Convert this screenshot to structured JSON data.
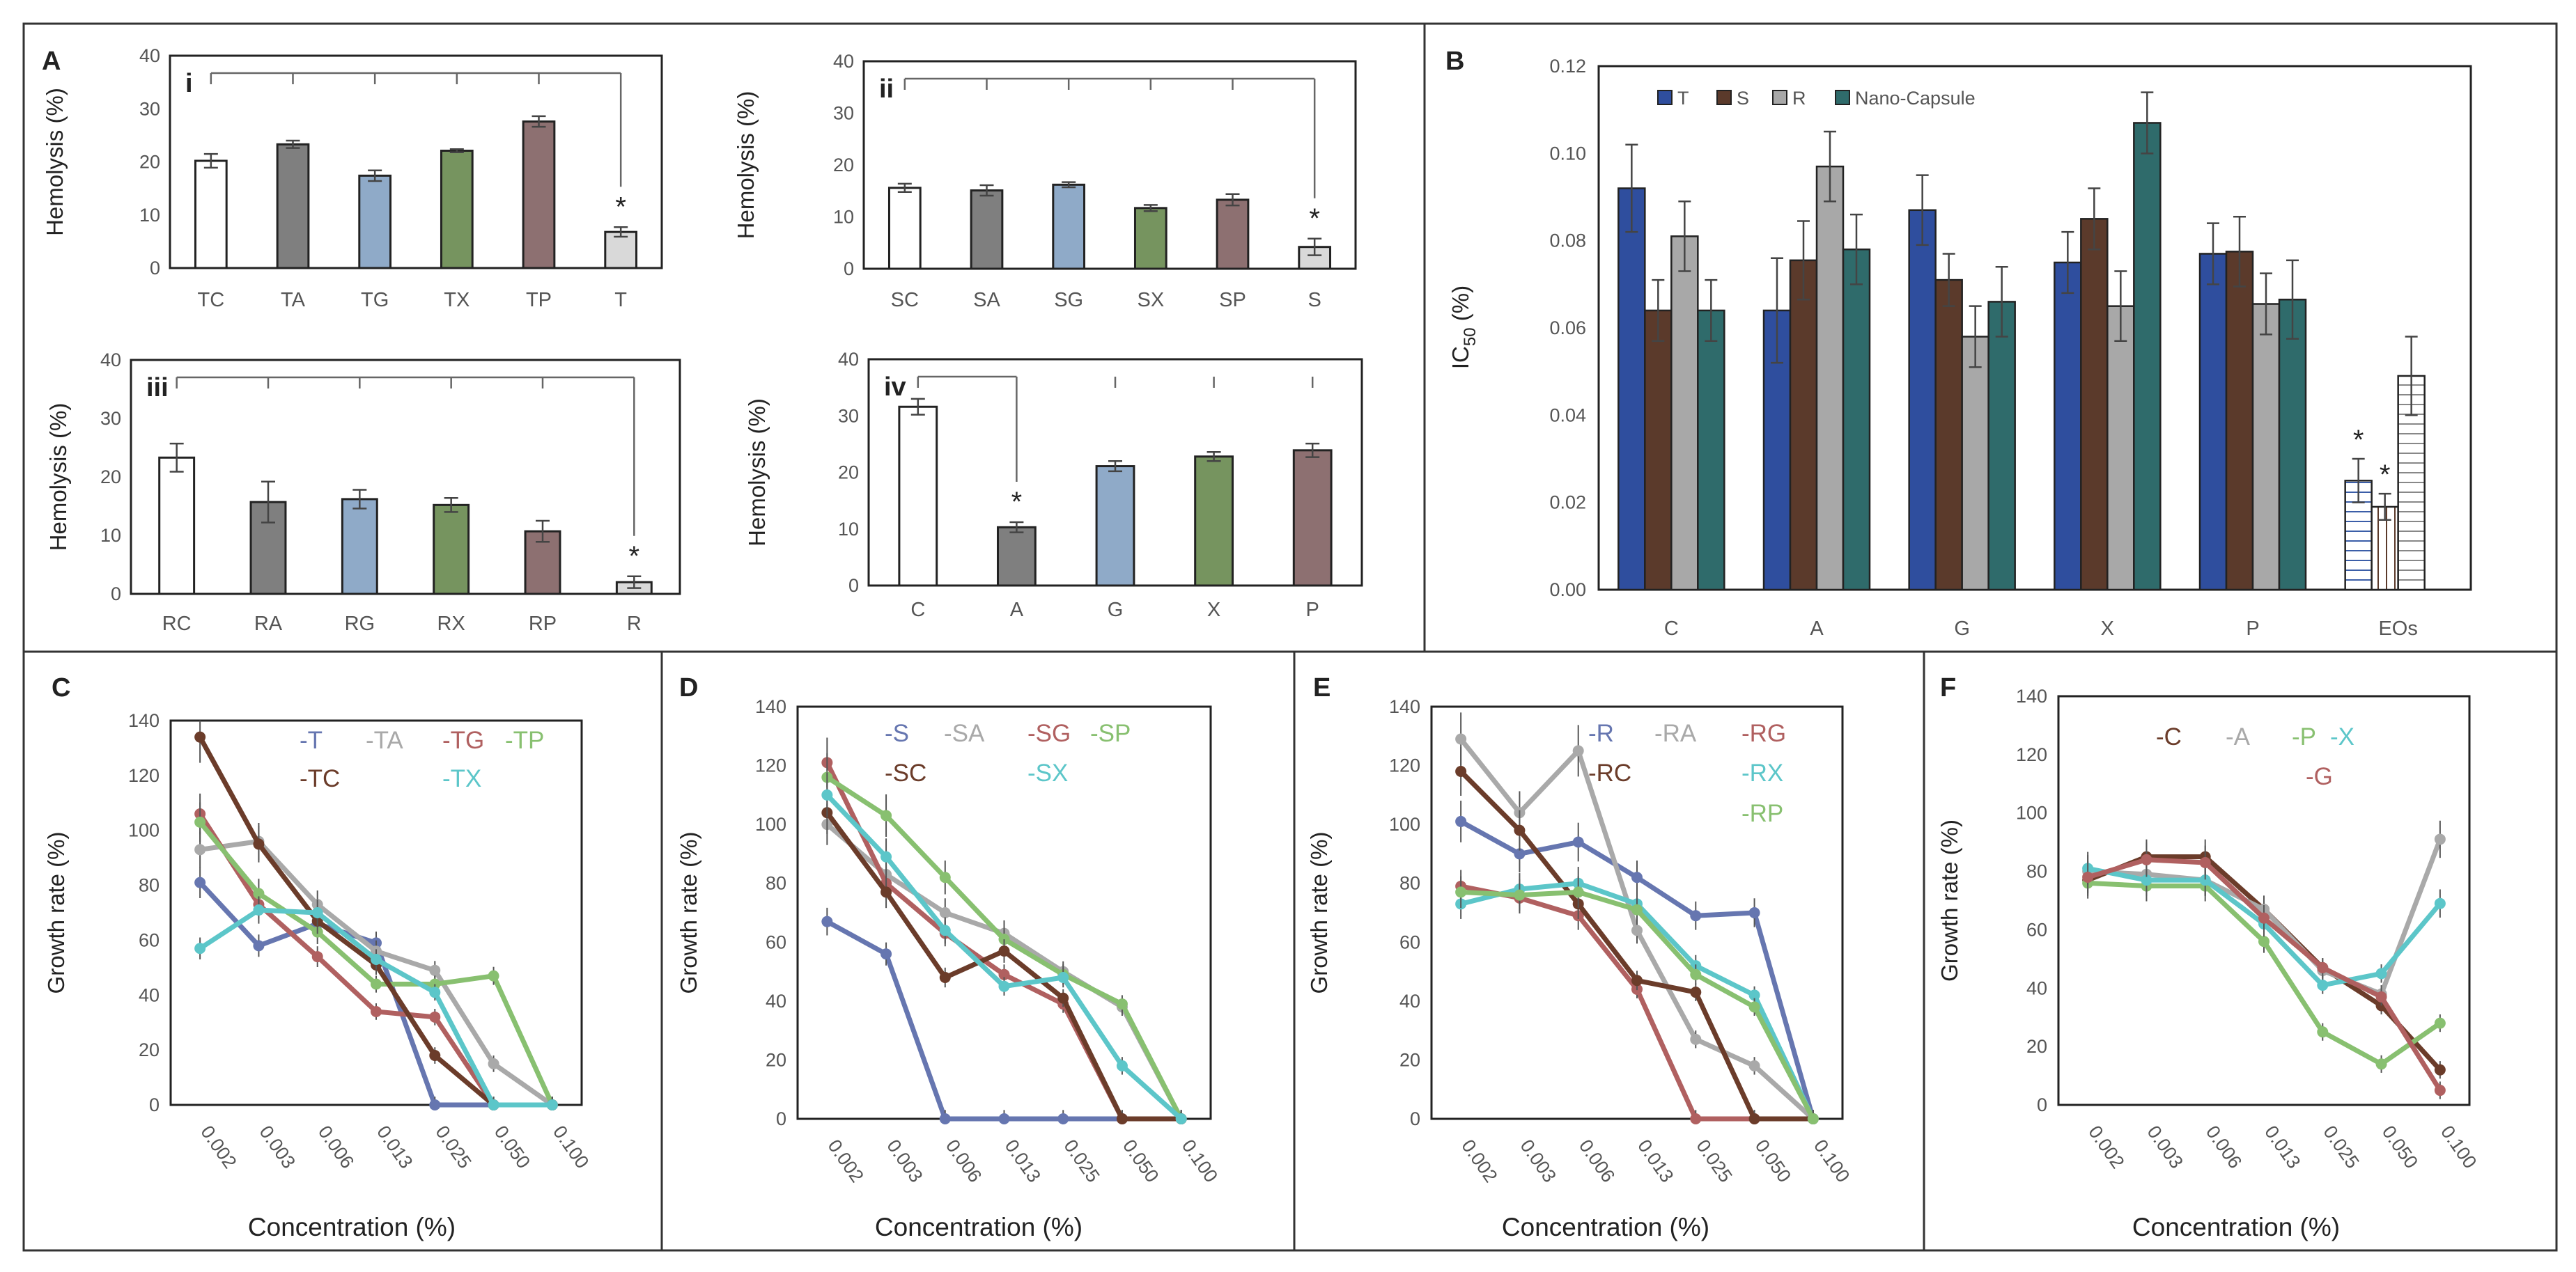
{
  "panel_letters": {
    "a": "A",
    "b": "B",
    "c": "C",
    "d": "D",
    "e": "E",
    "f": "F"
  },
  "colors": {
    "white": "#ffffff",
    "lightgray": "#d9d9d9",
    "gray": "#7f7f7f",
    "blue": "#8faac8",
    "green": "#76945f",
    "mauve": "#8d7071",
    "navy": "#2f4e9e",
    "brown": "#5b3a2b",
    "silver": "#a8a8a8",
    "teal": "#2f6b6b",
    "line_blue": "#6676b0",
    "line_gray": "#a9a9a9",
    "line_red": "#b06060",
    "line_green": "#88c070",
    "line_brown": "#6b3c2a",
    "line_cyan": "#5cc6c9"
  },
  "chart_data": [
    {
      "id": "Ai",
      "type": "bar",
      "roman": "i",
      "ylabel": "Hemolysis (%)",
      "ylim": [
        0,
        40
      ],
      "yticks": [
        0,
        10,
        20,
        30,
        40
      ],
      "categories": [
        "TC",
        "TA",
        "TG",
        "TX",
        "TP",
        "T"
      ],
      "values": [
        20.2,
        23.3,
        17.4,
        22.1,
        27.6,
        6.8
      ],
      "errors": [
        1.3,
        0.7,
        1.0,
        0.3,
        1.0,
        0.9
      ],
      "bar_colors": [
        "white",
        "gray",
        "blue",
        "green",
        "mauve",
        "lightgray"
      ],
      "significance": {
        "label": "*",
        "index": 5
      }
    },
    {
      "id": "Aii",
      "type": "bar",
      "roman": "ii",
      "ylabel": "Hemolysis (%)",
      "ylim": [
        0,
        40
      ],
      "yticks": [
        0,
        10,
        20,
        30,
        40
      ],
      "categories": [
        "SC",
        "SA",
        "SG",
        "SX",
        "SP",
        "S"
      ],
      "values": [
        15.6,
        15.1,
        16.2,
        11.7,
        13.3,
        4.2
      ],
      "errors": [
        0.8,
        1.0,
        0.5,
        0.6,
        1.1,
        1.6
      ],
      "bar_colors": [
        "white",
        "gray",
        "blue",
        "green",
        "mauve",
        "lightgray"
      ],
      "significance": {
        "label": "*",
        "index": 5
      }
    },
    {
      "id": "Aiii",
      "type": "bar",
      "roman": "iii",
      "ylabel": "Hemolysis (%)",
      "ylim": [
        0,
        40
      ],
      "yticks": [
        0,
        10,
        20,
        30,
        40
      ],
      "categories": [
        "RC",
        "RA",
        "RG",
        "RX",
        "RP",
        "R"
      ],
      "values": [
        23.3,
        15.7,
        16.2,
        15.2,
        10.7,
        2.0
      ],
      "errors": [
        2.4,
        3.5,
        1.6,
        1.2,
        1.8,
        1.0
      ],
      "bar_colors": [
        "white",
        "gray",
        "blue",
        "green",
        "mauve",
        "lightgray"
      ],
      "significance": {
        "label": "*",
        "index": 5
      }
    },
    {
      "id": "Aiv",
      "type": "bar",
      "roman": "iv",
      "ylabel": "Hemolysis (%)",
      "ylim": [
        0,
        40
      ],
      "yticks": [
        0,
        10,
        20,
        30,
        40
      ],
      "categories": [
        "C",
        "A",
        "G",
        "X",
        "P"
      ],
      "values": [
        31.6,
        10.3,
        21.1,
        22.8,
        23.9
      ],
      "errors": [
        1.4,
        0.9,
        0.9,
        0.8,
        1.2
      ],
      "bar_colors": [
        "white",
        "gray",
        "blue",
        "green",
        "mauve"
      ],
      "significance": {
        "label": "*",
        "index": 1
      }
    },
    {
      "id": "B",
      "type": "bar",
      "ylabel": "IC",
      "ylabel_sub": "50",
      "ylabel_tail": " (%)",
      "ylim": [
        0,
        0.12
      ],
      "yticks": [
        "0.00",
        "0.02",
        "0.04",
        "0.06",
        "0.08",
        "0.10",
        "0.12"
      ],
      "categories": [
        "C",
        "A",
        "G",
        "X",
        "P",
        "EOs"
      ],
      "series": [
        {
          "name": "T",
          "color": "navy",
          "values": [
            0.092,
            0.064,
            0.087,
            0.075,
            0.077,
            0.025
          ],
          "errors": [
            0.01,
            0.012,
            0.008,
            0.007,
            0.007,
            0.005
          ]
        },
        {
          "name": "S",
          "color": "brown",
          "values": [
            0.064,
            0.0755,
            0.071,
            0.085,
            0.0775,
            0.019
          ],
          "errors": [
            0.007,
            0.009,
            0.006,
            0.007,
            0.008,
            0.003
          ]
        },
        {
          "name": "R",
          "color": "silver",
          "values": [
            0.081,
            0.097,
            0.058,
            0.065,
            0.0655,
            0.049
          ],
          "errors": [
            0.008,
            0.008,
            0.007,
            0.008,
            0.007,
            0.009
          ]
        },
        {
          "name": "Nano-Capsule",
          "color": "teal",
          "values": [
            0.064,
            0.078,
            0.066,
            0.107,
            0.0665,
            null
          ],
          "errors": [
            0.007,
            0.008,
            0.008,
            0.007,
            0.009,
            null
          ]
        }
      ],
      "hatched_category": "EOs",
      "significance": [
        {
          "label": "*",
          "series": 0,
          "category": 5
        },
        {
          "label": "*",
          "series": 1,
          "category": 5
        }
      ]
    },
    {
      "id": "C",
      "type": "line",
      "ylabel": "Growth rate (%)",
      "xlabel": "Concentration (%)",
      "ylim": [
        0,
        140
      ],
      "yticks": [
        0,
        20,
        40,
        60,
        80,
        100,
        120,
        140
      ],
      "categories": [
        "0.002",
        "0.003",
        "0.006",
        "0.013",
        "0.025",
        "0.050",
        "0.100"
      ],
      "series": [
        {
          "name": "-T",
          "color": "line_blue",
          "values": [
            81,
            58,
            66,
            59,
            0,
            0,
            0
          ]
        },
        {
          "name": "-TA",
          "color": "line_gray",
          "values": [
            93,
            96,
            73,
            56,
            49,
            15,
            0
          ]
        },
        {
          "name": "-TG",
          "color": "line_red",
          "values": [
            106,
            73,
            54,
            34,
            32,
            0,
            0
          ]
        },
        {
          "name": "-TP",
          "color": "line_green",
          "values": [
            103,
            77,
            63,
            44,
            44,
            47,
            0
          ]
        },
        {
          "name": "-TC",
          "color": "line_brown",
          "values": [
            134,
            95,
            67,
            51,
            18,
            0,
            0
          ]
        },
        {
          "name": "-TX",
          "color": "line_cyan",
          "values": [
            57,
            71,
            70,
            53,
            41,
            0,
            0
          ]
        }
      ]
    },
    {
      "id": "D",
      "type": "line",
      "ylabel": "Growth rate (%)",
      "xlabel": "Concentration (%)",
      "ylim": [
        0,
        140
      ],
      "yticks": [
        0,
        20,
        40,
        60,
        80,
        100,
        120,
        140
      ],
      "categories": [
        "0.002",
        "0.003",
        "0.006",
        "0.013",
        "0.025",
        "0.050",
        "0.100"
      ],
      "series": [
        {
          "name": "-S",
          "color": "line_blue",
          "values": [
            67,
            56,
            0,
            0,
            0,
            0,
            0
          ]
        },
        {
          "name": "-SA",
          "color": "line_gray",
          "values": [
            100,
            83,
            70,
            63,
            50,
            38,
            0
          ]
        },
        {
          "name": "-SG",
          "color": "line_red",
          "values": [
            121,
            80,
            63,
            49,
            39,
            0,
            0
          ]
        },
        {
          "name": "-SP",
          "color": "line_green",
          "values": [
            116,
            103,
            82,
            61,
            49,
            39,
            0
          ]
        },
        {
          "name": "-SC",
          "color": "line_brown",
          "values": [
            104,
            77,
            48,
            57,
            41,
            0,
            0
          ]
        },
        {
          "name": "-SX",
          "color": "line_cyan",
          "values": [
            110,
            89,
            64,
            45,
            48,
            18,
            0
          ]
        }
      ]
    },
    {
      "id": "E",
      "type": "line",
      "ylabel": "Growth rate (%)",
      "xlabel": "Concentration (%)",
      "ylim": [
        0,
        140
      ],
      "yticks": [
        0,
        20,
        40,
        60,
        80,
        100,
        120,
        140
      ],
      "categories": [
        "0.002",
        "0.003",
        "0.006",
        "0.013",
        "0.025",
        "0.050",
        "0.100"
      ],
      "series": [
        {
          "name": "-R",
          "color": "line_blue",
          "values": [
            101,
            90,
            94,
            82,
            69,
            70,
            0
          ]
        },
        {
          "name": "-RA",
          "color": "line_gray",
          "values": [
            129,
            104,
            125,
            64,
            27,
            18,
            0
          ]
        },
        {
          "name": "-RG",
          "color": "line_red",
          "values": [
            79,
            75,
            69,
            44,
            0,
            0,
            0
          ]
        },
        {
          "name": "-RC",
          "color": "line_brown",
          "values": [
            118,
            98,
            73,
            47,
            43,
            0,
            0
          ]
        },
        {
          "name": "-RX",
          "color": "line_cyan",
          "values": [
            73,
            78,
            80,
            73,
            52,
            42,
            0
          ]
        },
        {
          "name": "-RP",
          "color": "line_green",
          "values": [
            77,
            76,
            77,
            71,
            49,
            38,
            0
          ]
        }
      ]
    },
    {
      "id": "F",
      "type": "line",
      "ylabel": "Growth rate (%)",
      "xlabel": "Concentration (%)",
      "ylim": [
        0,
        140
      ],
      "yticks": [
        0,
        20,
        40,
        60,
        80,
        100,
        120,
        140
      ],
      "categories": [
        "0.002",
        "0.003",
        "0.006",
        "0.013",
        "0.025",
        "0.050",
        "0.100"
      ],
      "series": [
        {
          "name": "-C",
          "color": "line_brown",
          "values": [
            77,
            85,
            85,
            67,
            47,
            34,
            12
          ]
        },
        {
          "name": "-A",
          "color": "line_gray",
          "values": [
            80,
            79,
            77,
            67,
            46,
            38,
            91
          ]
        },
        {
          "name": "-P",
          "color": "line_green",
          "values": [
            76,
            75,
            75,
            56,
            25,
            14,
            28
          ]
        },
        {
          "name": "-X",
          "color": "line_cyan",
          "values": [
            81,
            77,
            77,
            62,
            41,
            45,
            69
          ]
        },
        {
          "name": "-G",
          "color": "line_red",
          "values": [
            78,
            84,
            83,
            64,
            47,
            37,
            5
          ]
        }
      ]
    }
  ]
}
